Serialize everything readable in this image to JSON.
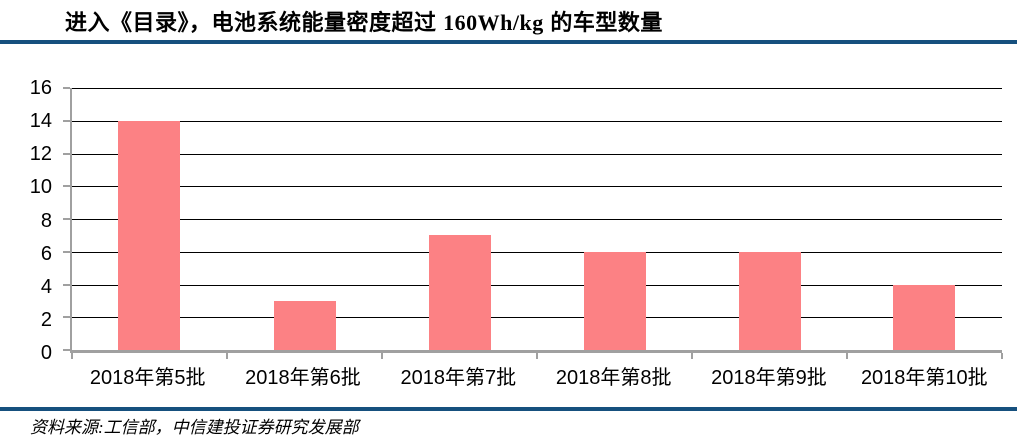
{
  "header": {
    "title_parts": [
      "进入《目录》，电池系统能量密度超过 ",
      "160Wh/kg",
      " 的车型数量"
    ]
  },
  "footer": {
    "source": "资料来源:工信部，中信建投证券研究发展部"
  },
  "colors": {
    "bar": "#FC8184",
    "rule": "#16507E",
    "axis": "#A0A0A0",
    "gridline": "#000000",
    "text": "#000000"
  },
  "chart_data": {
    "type": "bar",
    "title": "进入《目录》，电池系统能量密度超过 160Wh/kg 的车型数量",
    "categories": [
      "2018年第5批",
      "2018年第6批",
      "2018年第7批",
      "2018年第8批",
      "2018年第9批",
      "2018年第10批"
    ],
    "values": [
      14,
      3,
      7,
      6,
      6,
      4
    ],
    "xlabel": "",
    "ylabel": "",
    "ylim": [
      0,
      16
    ],
    "ytick_step": 2,
    "grid": true,
    "legend": "none"
  }
}
